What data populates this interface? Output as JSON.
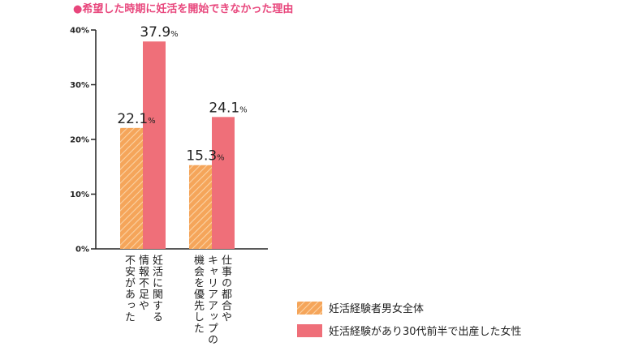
{
  "title": "●希望した時期に妊活を開始できなかった理由",
  "colors": {
    "accent": "#e8467c",
    "series1": "#f5a55a",
    "series2": "#ef6f79"
  },
  "chart_data": {
    "type": "bar",
    "categories": [
      "妊活に関する情報不足や不安があった",
      "仕事の都合やキャリアアップの機会を優先した"
    ],
    "category_label_lines": [
      [
        "妊活に関する",
        "情報不足や",
        "不安があった"
      ],
      [
        "仕事の都合や",
        "キャリアアップの",
        "機会を優先した"
      ]
    ],
    "series": [
      {
        "name": "妊活経験者男女全体",
        "values": [
          22.1,
          15.3
        ],
        "value_labels": [
          "22.1",
          "15.3"
        ],
        "color": "#f5a55a",
        "pattern": "hatched"
      },
      {
        "name": "妊活経験があり30代前半で出産した女性",
        "values": [
          37.9,
          24.1
        ],
        "value_labels": [
          "37.9",
          "24.1"
        ],
        "color": "#ef6f79",
        "pattern": "solid"
      }
    ],
    "value_unit": "%",
    "yticks": [
      "0%",
      "10%",
      "20%",
      "30%",
      "40%"
    ],
    "ylim": [
      0,
      40
    ],
    "grid": false,
    "legend_position": "bottom-right"
  }
}
